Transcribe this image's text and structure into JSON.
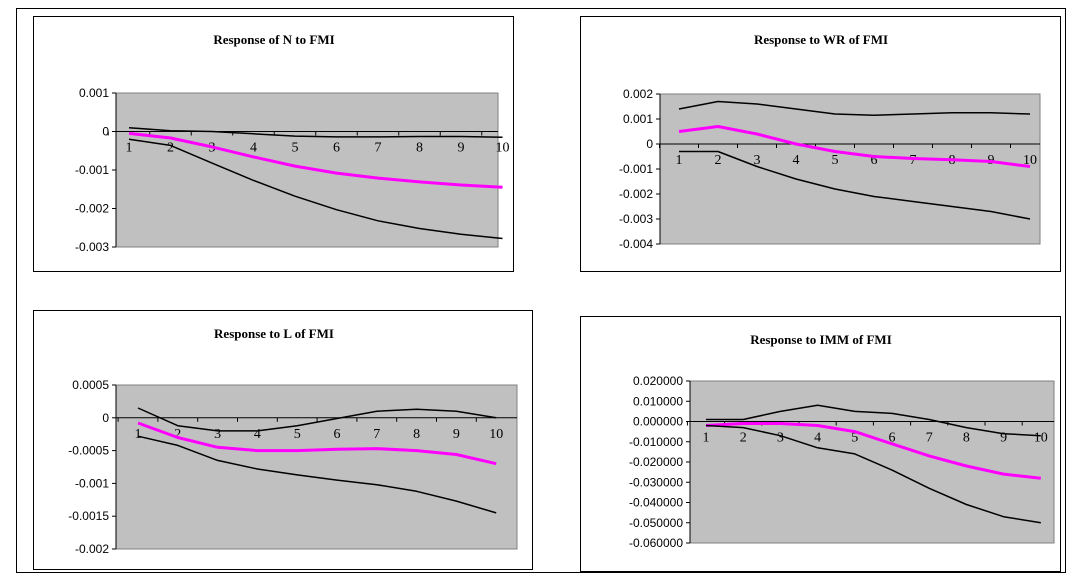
{
  "colors": {
    "plot_bg": "#c0c0c0",
    "band": "#000000",
    "response": "#ff00ff",
    "frame": "#000000"
  },
  "chart_data": [
    {
      "type": "line",
      "title": "Response of N to FMI",
      "x": [
        1,
        2,
        3,
        4,
        5,
        6,
        7,
        8,
        9,
        10
      ],
      "ylim": [
        -0.003,
        0.001
      ],
      "yticks": [
        0.001,
        0,
        -0.001,
        -0.002,
        -0.003
      ],
      "ytick_labels": [
        "0.001",
        "0",
        "-0.001",
        "-0.002",
        "-0.003"
      ],
      "grid": false,
      "legend": "none",
      "series": [
        {
          "role": "upper",
          "values": [
            0.0001,
            2e-05,
            0.0,
            -6e-05,
            -0.00012,
            -0.00014,
            -0.00014,
            -0.00013,
            -0.00013,
            -0.00015
          ]
        },
        {
          "role": "response",
          "values": [
            -5e-05,
            -0.00017,
            -0.0004,
            -0.00066,
            -0.0009,
            -0.00108,
            -0.00121,
            -0.00131,
            -0.00139,
            -0.00145
          ]
        },
        {
          "role": "lower",
          "values": [
            -0.0002,
            -0.00036,
            -0.00082,
            -0.00127,
            -0.00168,
            -0.00203,
            -0.00232,
            -0.00252,
            -0.00267,
            -0.00278
          ]
        }
      ]
    },
    {
      "type": "line",
      "title": "Response to WR of FMI",
      "x": [
        1,
        2,
        3,
        4,
        5,
        6,
        7,
        8,
        9,
        10
      ],
      "ylim": [
        -0.004,
        0.002
      ],
      "yticks": [
        0.002,
        0.001,
        0,
        -0.001,
        -0.002,
        -0.003,
        -0.004
      ],
      "ytick_labels": [
        "0.002",
        "0.001",
        "0",
        "-0.001",
        "-0.002",
        "-0.003",
        "-0.004"
      ],
      "grid": false,
      "legend": "none",
      "series": [
        {
          "role": "upper",
          "values": [
            0.0014,
            0.0017,
            0.0016,
            0.0014,
            0.0012,
            0.00115,
            0.0012,
            0.00125,
            0.00125,
            0.0012
          ]
        },
        {
          "role": "response",
          "values": [
            0.0005,
            0.0007,
            0.0004,
            0.0,
            -0.0003,
            -0.0005,
            -0.00058,
            -0.00063,
            -0.0007,
            -0.0009
          ]
        },
        {
          "role": "lower",
          "values": [
            -0.0003,
            -0.0003,
            -0.0009,
            -0.0014,
            -0.0018,
            -0.0021,
            -0.0023,
            -0.0025,
            -0.0027,
            -0.003
          ]
        }
      ]
    },
    {
      "type": "line",
      "title": "Response to L of FMI",
      "x": [
        1,
        2,
        3,
        4,
        5,
        6,
        7,
        8,
        9,
        10
      ],
      "ylim": [
        -0.002,
        0.0005
      ],
      "yticks": [
        0.0005,
        0,
        -0.0005,
        -0.001,
        -0.0015,
        -0.002
      ],
      "ytick_labels": [
        "0.0005",
        "0",
        "-0.0005",
        "-0.001",
        "-0.0015",
        "-0.002"
      ],
      "grid": false,
      "legend": "none",
      "series": [
        {
          "role": "upper",
          "values": [
            0.00015,
            -0.00012,
            -0.0002,
            -0.0002,
            -0.00012,
            -1e-05,
            0.0001,
            0.00013,
            0.0001,
            0.0
          ]
        },
        {
          "role": "response",
          "values": [
            -8e-05,
            -0.0003,
            -0.00045,
            -0.0005,
            -0.0005,
            -0.00048,
            -0.00047,
            -0.0005,
            -0.00056,
            -0.0007
          ]
        },
        {
          "role": "lower",
          "values": [
            -0.00028,
            -0.00042,
            -0.00065,
            -0.00078,
            -0.00087,
            -0.00095,
            -0.00102,
            -0.00112,
            -0.00127,
            -0.00145
          ]
        }
      ]
    },
    {
      "type": "line",
      "title": "Response to IMM of FMI",
      "x": [
        1,
        2,
        3,
        4,
        5,
        6,
        7,
        8,
        9,
        10
      ],
      "ylim": [
        -0.06,
        0.02
      ],
      "yticks": [
        0.02,
        0.01,
        0.0,
        -0.01,
        -0.02,
        -0.03,
        -0.04,
        -0.05,
        -0.06
      ],
      "ytick_labels": [
        "0.020000",
        "0.010000",
        "0.000000",
        "-0.010000",
        "-0.020000",
        "-0.030000",
        "-0.040000",
        "-0.050000",
        "-0.060000"
      ],
      "grid": false,
      "legend": "none",
      "series": [
        {
          "role": "upper",
          "values": [
            0.001,
            0.001,
            0.005,
            0.008,
            0.005,
            0.004,
            0.001,
            -0.003,
            -0.006,
            -0.007
          ]
        },
        {
          "role": "response",
          "values": [
            -0.002,
            -0.001,
            -0.001,
            -0.002,
            -0.005,
            -0.011,
            -0.017,
            -0.022,
            -0.026,
            -0.028
          ]
        },
        {
          "role": "lower",
          "values": [
            -0.002,
            -0.003,
            -0.007,
            -0.013,
            -0.016,
            -0.024,
            -0.033,
            -0.041,
            -0.047,
            -0.05
          ]
        }
      ]
    }
  ]
}
